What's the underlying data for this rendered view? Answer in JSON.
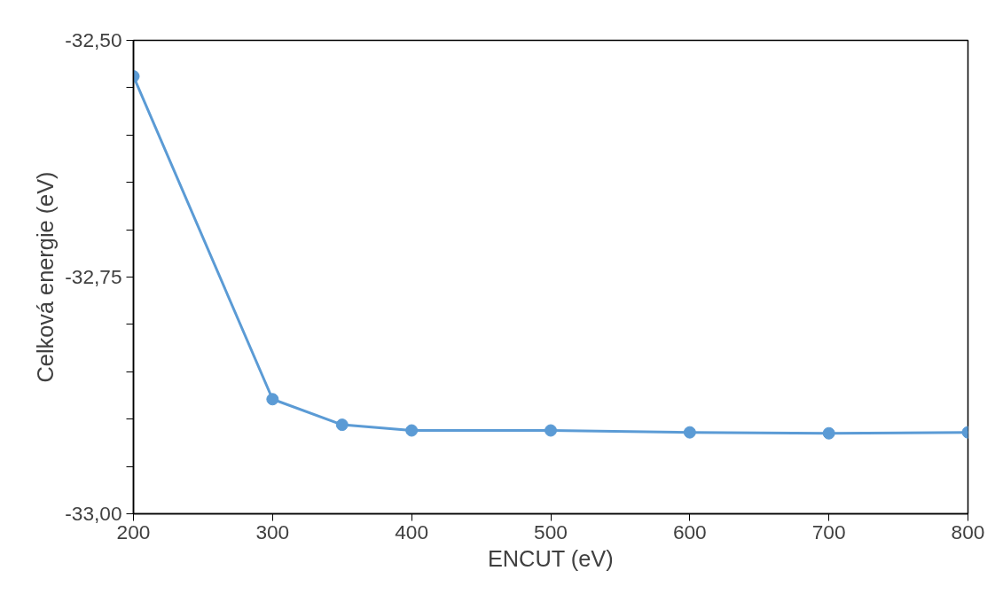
{
  "chart_data": {
    "type": "line",
    "xlabel": "ENCUT (eV)",
    "ylabel": "Celková energie (eV)",
    "x": [
      200,
      300,
      350,
      400,
      500,
      600,
      700,
      800
    ],
    "series": [
      {
        "color": "#5b9bd5",
        "values": [
          -32.538,
          -32.879,
          -32.906,
          -32.912,
          -32.912,
          -32.914,
          -32.915,
          -32.914
        ]
      }
    ],
    "xlim": [
      200,
      800
    ],
    "xticks": [
      200,
      300,
      400,
      500,
      600,
      700,
      800
    ],
    "ylim": [
      -33.0,
      -32.5
    ],
    "yticks": [
      {
        "value": -33.0,
        "label": "-33,00"
      },
      {
        "value": -32.95,
        "label": null
      },
      {
        "value": -32.9,
        "label": null
      },
      {
        "value": -32.85,
        "label": null
      },
      {
        "value": -32.8,
        "label": null
      },
      {
        "value": -32.75,
        "label": "-32,75"
      },
      {
        "value": -32.7,
        "label": null
      },
      {
        "value": -32.65,
        "label": null
      },
      {
        "value": -32.6,
        "label": null
      },
      {
        "value": -32.55,
        "label": null
      },
      {
        "value": -32.5,
        "label": "-32,50"
      }
    ],
    "grid": false,
    "marker": "circle",
    "line_style": "solid"
  }
}
